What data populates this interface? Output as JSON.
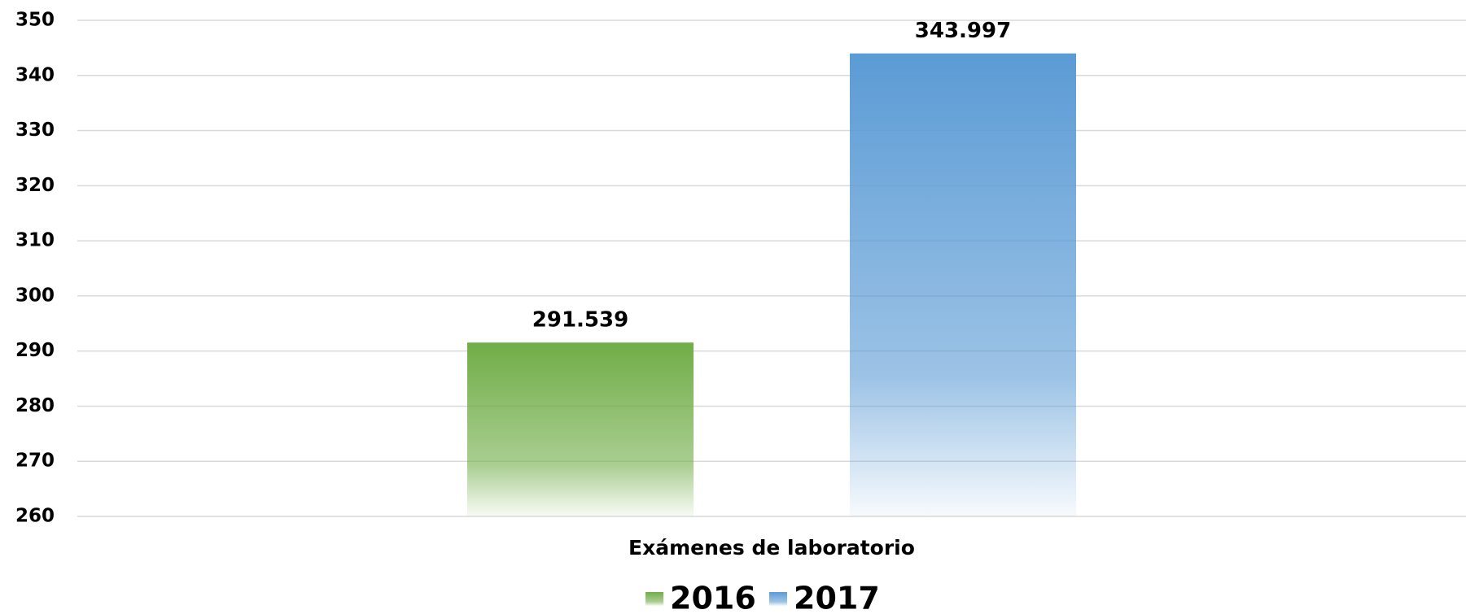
{
  "chart_data": {
    "type": "bar",
    "categories": [
      "Exámenes de laboratorio"
    ],
    "series": [
      {
        "name": "2016",
        "color": "#70ad47",
        "values": [
          291.539
        ]
      },
      {
        "name": "2017",
        "color": "#5b9bd5",
        "values": [
          343.997
        ]
      }
    ],
    "ylim": [
      260,
      350
    ],
    "yticks": [
      260,
      270,
      280,
      290,
      300,
      310,
      320,
      330,
      340,
      350
    ],
    "grid": true
  }
}
